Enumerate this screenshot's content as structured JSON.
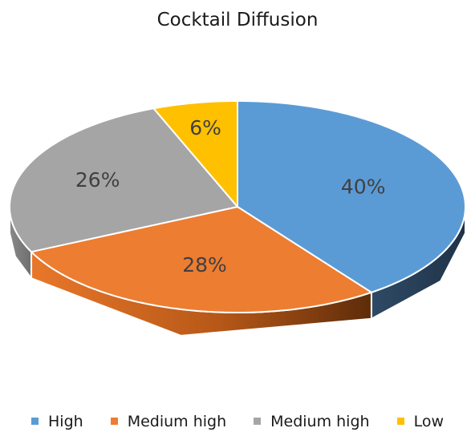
{
  "chart_data": {
    "type": "pie",
    "title": "Cocktail Diffusion",
    "categories": [
      "High",
      "Medium high",
      "Medium high",
      "Low"
    ],
    "values": [
      40,
      28,
      26,
      6
    ],
    "value_labels": [
      "40%",
      "28%",
      "26%",
      "6%"
    ],
    "units": "%",
    "colors": [
      "#5B9BD5",
      "#ED7D31",
      "#A5A5A5",
      "#FFC000"
    ],
    "style": "3d",
    "legend_position": "bottom"
  }
}
